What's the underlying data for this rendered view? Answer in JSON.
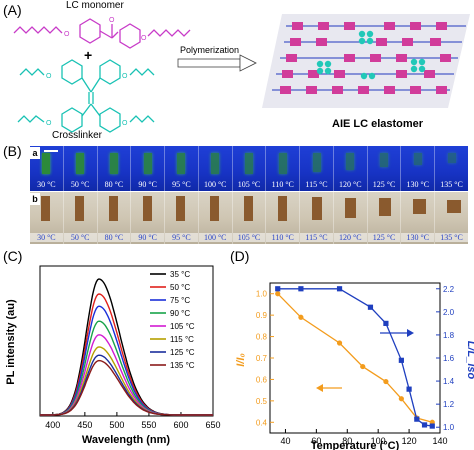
{
  "panelA": {
    "label": "(A)",
    "monomer_label": "LC monomer",
    "plus": "+",
    "crosslinker_label": "Crosslinker",
    "arrow_label": "Polymerization",
    "product_label": "AIE LC elastomer"
  },
  "panelB": {
    "label": "(B)",
    "row_a_tag": "a",
    "row_b_tag": "b",
    "temperatures": [
      "30 °C",
      "50 °C",
      "80 °C",
      "90 °C",
      "95 °C",
      "100 °C",
      "105 °C",
      "110 °C",
      "115 °C",
      "120 °C",
      "125 °C",
      "130 °C",
      "135 °C"
    ]
  },
  "chart_data": [
    {
      "panel": "(C)",
      "type": "line",
      "xlabel": "Wavelength (nm)",
      "ylabel": "PL intensity (au)",
      "xlim": [
        380,
        650
      ],
      "xticks": [
        400,
        450,
        500,
        550,
        600,
        650
      ],
      "peak_nm": 472,
      "series": [
        {
          "name": "35 °C",
          "color": "#000000",
          "peak": 1.0
        },
        {
          "name": "50 °C",
          "color": "#e0201b",
          "peak": 0.89
        },
        {
          "name": "75 °C",
          "color": "#1b2fd8",
          "peak": 0.8
        },
        {
          "name": "90 °C",
          "color": "#18a34a",
          "peak": 0.69
        },
        {
          "name": "105 °C",
          "color": "#d21bd2",
          "peak": 0.59
        },
        {
          "name": "115 °C",
          "color": "#b5a000",
          "peak": 0.5
        },
        {
          "name": "125 °C",
          "color": "#1b2f9c",
          "peak": 0.44
        },
        {
          "name": "135 °C",
          "color": "#8b1a1a",
          "peak": 0.4
        }
      ]
    },
    {
      "panel": "(D)",
      "type": "line",
      "xlabel": "Temperature (°C)",
      "xlim": [
        30,
        140
      ],
      "xticks": [
        40,
        60,
        80,
        100,
        120,
        140
      ],
      "ylabel_left": "I/I₀",
      "ylim_left": [
        0.35,
        1.05
      ],
      "yticks_left": [
        "0.4",
        "0.5",
        "0.6",
        "0.7",
        "0.8",
        "0.9",
        "1.0"
      ],
      "ylabel_right": "L/L_iso",
      "ylim_right": [
        0.95,
        2.25
      ],
      "yticks_right": [
        "1.0",
        "1.2",
        "1.4",
        "1.6",
        "1.8",
        "2.0",
        "2.2"
      ],
      "series": [
        {
          "name": "I/I0",
          "axis": "left",
          "color": "#f39c1d",
          "marker": "circle",
          "x": [
            35,
            50,
            75,
            90,
            105,
            115,
            125,
            135
          ],
          "y": [
            1.0,
            0.89,
            0.77,
            0.66,
            0.59,
            0.51,
            0.42,
            0.4
          ]
        },
        {
          "name": "L/Liso",
          "axis": "right",
          "color": "#1f3fbf",
          "marker": "square",
          "x": [
            35,
            50,
            75,
            95,
            105,
            115,
            120,
            125,
            130,
            135
          ],
          "y": [
            2.2,
            2.2,
            2.2,
            2.04,
            1.9,
            1.58,
            1.33,
            1.07,
            1.02,
            1.01
          ]
        }
      ]
    }
  ]
}
